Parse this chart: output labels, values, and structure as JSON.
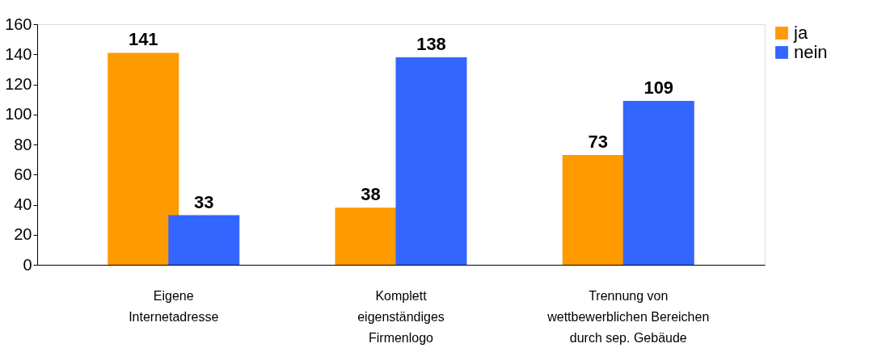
{
  "chart_data": {
    "type": "bar",
    "categories": [
      "Eigene\nInternetadresse",
      "Komplett\neigenständiges\nFirmenlogo",
      "Trennung von\nwettbewerblichen Bereichen\ndurch sep. Gebäude"
    ],
    "series": [
      {
        "name": "ja",
        "color": "#ff9900",
        "values": [
          141,
          38,
          73
        ]
      },
      {
        "name": "nein",
        "color": "#3366ff",
        "values": [
          33,
          138,
          109
        ]
      }
    ],
    "ylim": [
      0,
      160
    ],
    "yticks": [
      0,
      20,
      40,
      60,
      80,
      100,
      120,
      140,
      160
    ],
    "grid": false,
    "legend": "right",
    "data_labels": true
  }
}
